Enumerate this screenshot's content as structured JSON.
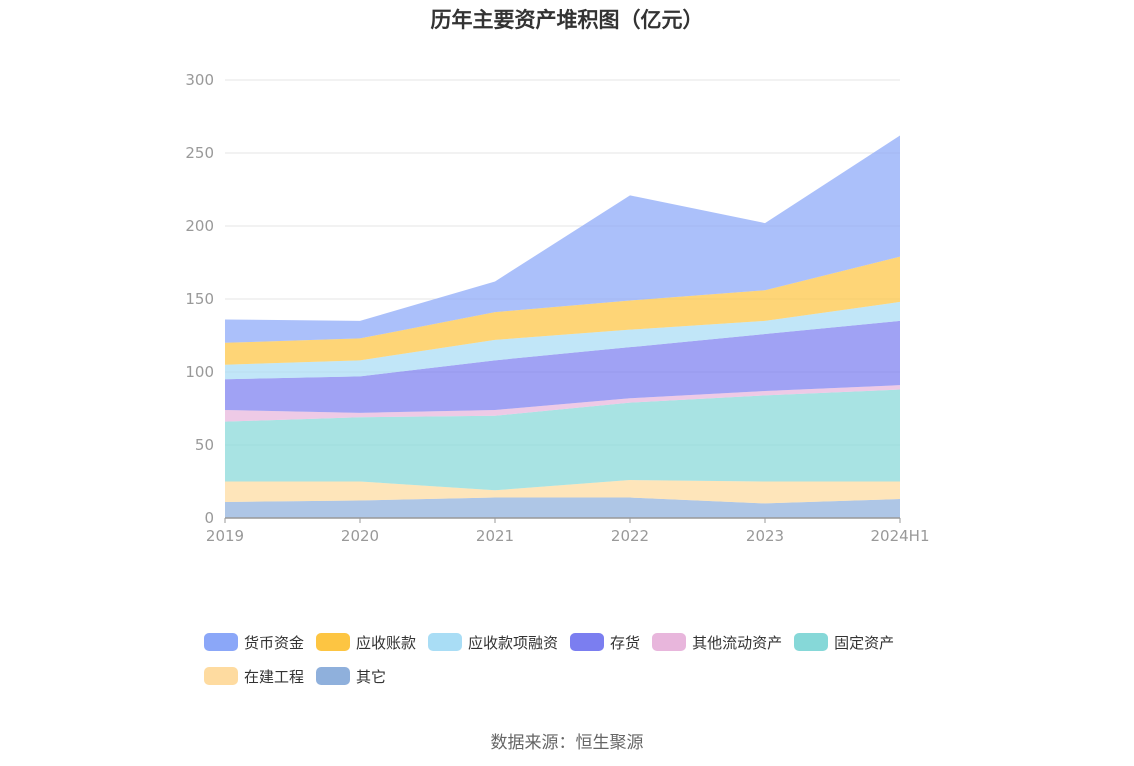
{
  "title": "历年主要资产堆积图（亿元）",
  "source_text": "数据来源：恒生聚源",
  "chart_data": {
    "type": "area",
    "stacked": true,
    "title": "历年主要资产堆积图（亿元）",
    "x": [
      "2019",
      "2020",
      "2021",
      "2022",
      "2023",
      "2024H1"
    ],
    "yticks": [
      "0",
      "50",
      "100",
      "150",
      "200",
      "250",
      "300"
    ],
    "ylim": [
      0,
      300
    ],
    "grid": true,
    "legend_position": "bottom",
    "series": [
      {
        "name": "其它",
        "color": "#8fb0dc",
        "values": [
          11,
          12,
          14,
          14,
          10,
          13
        ]
      },
      {
        "name": "在建工程",
        "color": "#fedba0",
        "values": [
          14,
          13,
          5,
          12,
          15,
          12
        ]
      },
      {
        "name": "固定资产",
        "color": "#86d8d8",
        "values": [
          41,
          44,
          51,
          53,
          59,
          63
        ]
      },
      {
        "name": "其他流动资产",
        "color": "#e8b6dc",
        "values": [
          8,
          3,
          4,
          3,
          3,
          3
        ]
      },
      {
        "name": "存货",
        "color": "#7b7ef0",
        "values": [
          21,
          25,
          34,
          35,
          39,
          44
        ]
      },
      {
        "name": "应收款项融资",
        "color": "#a9ddf5",
        "values": [
          10,
          11,
          14,
          12,
          9,
          13
        ]
      },
      {
        "name": "应收账款",
        "color": "#fdc542",
        "values": [
          15,
          15,
          19,
          20,
          21,
          31
        ]
      },
      {
        "name": "货币资金",
        "color": "#8ba7f8",
        "values": [
          16,
          12,
          21,
          72,
          46,
          83
        ]
      }
    ],
    "legend_order": [
      "货币资金",
      "应收账款",
      "应收款项融资",
      "存货",
      "其他流动资产",
      "固定资产",
      "在建工程",
      "其它"
    ]
  }
}
